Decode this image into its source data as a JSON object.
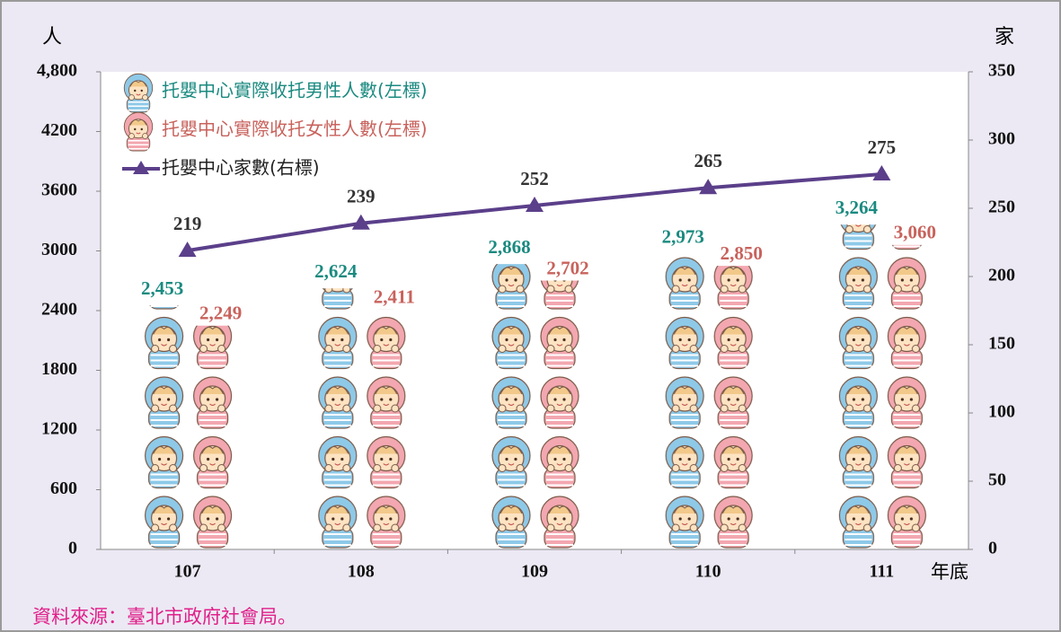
{
  "chart_data": {
    "type": "pictogram-bar-line",
    "y_label": "人",
    "y2_label": "家",
    "x_label": "年底",
    "source": "資料來源：臺北市政府社會局。",
    "categories": [
      "107",
      "108",
      "109",
      "110",
      "111"
    ],
    "series": [
      {
        "name": "托嬰中心實際收托男性人數(左標)",
        "color": "#1a8a80",
        "icon_color": "#8ec9e8",
        "type": "pictogram",
        "values": [
          2453,
          2624,
          2868,
          2973,
          3264
        ],
        "value_labels": [
          "2,453",
          "2,624",
          "2,868",
          "2,973",
          "3,264"
        ]
      },
      {
        "name": "托嬰中心實際收托女性人數(左標)",
        "color": "#c8625c",
        "icon_color": "#f3a7b0",
        "type": "pictogram",
        "values": [
          2249,
          2411,
          2702,
          2850,
          3060
        ],
        "value_labels": [
          "2,249",
          "2,411",
          "2,702",
          "2,850",
          "3,060"
        ]
      },
      {
        "name": "托嬰中心家數(右標)",
        "color": "#5b3f8a",
        "type": "line",
        "axis": "y2",
        "values": [
          219,
          239,
          252,
          265,
          275
        ]
      }
    ],
    "ylim": [
      0,
      4800
    ],
    "yticks": [
      0,
      600,
      1200,
      1800,
      2400,
      3000,
      3600,
      4200,
      {
        "value": 4800,
        "label": "4,800"
      }
    ],
    "y2lim": [
      0,
      350
    ],
    "y2ticks": [
      0,
      50,
      100,
      150,
      200,
      250,
      300,
      350
    ],
    "legend": "upper left"
  }
}
